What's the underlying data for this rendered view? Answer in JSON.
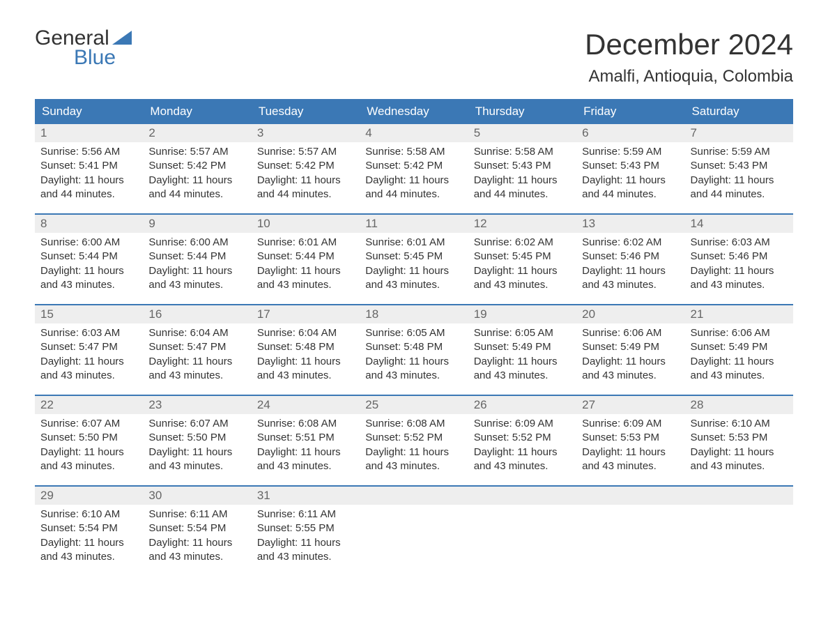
{
  "logo": {
    "word1": "General",
    "word2": "Blue",
    "triangle_color": "#3b78b5"
  },
  "title": "December 2024",
  "location": "Amalfi, Antioquia, Colombia",
  "colors": {
    "header_bg": "#3b78b5",
    "header_text": "#ffffff",
    "daynum_bg": "#eeeeee",
    "daynum_text": "#666666",
    "body_text": "#333333",
    "rule": "#3b78b5",
    "background": "#ffffff"
  },
  "fonts": {
    "title_size": 42,
    "location_size": 24,
    "header_size": 17,
    "body_size": 15
  },
  "day_labels": [
    "Sunday",
    "Monday",
    "Tuesday",
    "Wednesday",
    "Thursday",
    "Friday",
    "Saturday"
  ],
  "weeks": [
    [
      {
        "n": "1",
        "sunrise": "Sunrise: 5:56 AM",
        "sunset": "Sunset: 5:41 PM",
        "dl1": "Daylight: 11 hours",
        "dl2": "and 44 minutes."
      },
      {
        "n": "2",
        "sunrise": "Sunrise: 5:57 AM",
        "sunset": "Sunset: 5:42 PM",
        "dl1": "Daylight: 11 hours",
        "dl2": "and 44 minutes."
      },
      {
        "n": "3",
        "sunrise": "Sunrise: 5:57 AM",
        "sunset": "Sunset: 5:42 PM",
        "dl1": "Daylight: 11 hours",
        "dl2": "and 44 minutes."
      },
      {
        "n": "4",
        "sunrise": "Sunrise: 5:58 AM",
        "sunset": "Sunset: 5:42 PM",
        "dl1": "Daylight: 11 hours",
        "dl2": "and 44 minutes."
      },
      {
        "n": "5",
        "sunrise": "Sunrise: 5:58 AM",
        "sunset": "Sunset: 5:43 PM",
        "dl1": "Daylight: 11 hours",
        "dl2": "and 44 minutes."
      },
      {
        "n": "6",
        "sunrise": "Sunrise: 5:59 AM",
        "sunset": "Sunset: 5:43 PM",
        "dl1": "Daylight: 11 hours",
        "dl2": "and 44 minutes."
      },
      {
        "n": "7",
        "sunrise": "Sunrise: 5:59 AM",
        "sunset": "Sunset: 5:43 PM",
        "dl1": "Daylight: 11 hours",
        "dl2": "and 44 minutes."
      }
    ],
    [
      {
        "n": "8",
        "sunrise": "Sunrise: 6:00 AM",
        "sunset": "Sunset: 5:44 PM",
        "dl1": "Daylight: 11 hours",
        "dl2": "and 43 minutes."
      },
      {
        "n": "9",
        "sunrise": "Sunrise: 6:00 AM",
        "sunset": "Sunset: 5:44 PM",
        "dl1": "Daylight: 11 hours",
        "dl2": "and 43 minutes."
      },
      {
        "n": "10",
        "sunrise": "Sunrise: 6:01 AM",
        "sunset": "Sunset: 5:44 PM",
        "dl1": "Daylight: 11 hours",
        "dl2": "and 43 minutes."
      },
      {
        "n": "11",
        "sunrise": "Sunrise: 6:01 AM",
        "sunset": "Sunset: 5:45 PM",
        "dl1": "Daylight: 11 hours",
        "dl2": "and 43 minutes."
      },
      {
        "n": "12",
        "sunrise": "Sunrise: 6:02 AM",
        "sunset": "Sunset: 5:45 PM",
        "dl1": "Daylight: 11 hours",
        "dl2": "and 43 minutes."
      },
      {
        "n": "13",
        "sunrise": "Sunrise: 6:02 AM",
        "sunset": "Sunset: 5:46 PM",
        "dl1": "Daylight: 11 hours",
        "dl2": "and 43 minutes."
      },
      {
        "n": "14",
        "sunrise": "Sunrise: 6:03 AM",
        "sunset": "Sunset: 5:46 PM",
        "dl1": "Daylight: 11 hours",
        "dl2": "and 43 minutes."
      }
    ],
    [
      {
        "n": "15",
        "sunrise": "Sunrise: 6:03 AM",
        "sunset": "Sunset: 5:47 PM",
        "dl1": "Daylight: 11 hours",
        "dl2": "and 43 minutes."
      },
      {
        "n": "16",
        "sunrise": "Sunrise: 6:04 AM",
        "sunset": "Sunset: 5:47 PM",
        "dl1": "Daylight: 11 hours",
        "dl2": "and 43 minutes."
      },
      {
        "n": "17",
        "sunrise": "Sunrise: 6:04 AM",
        "sunset": "Sunset: 5:48 PM",
        "dl1": "Daylight: 11 hours",
        "dl2": "and 43 minutes."
      },
      {
        "n": "18",
        "sunrise": "Sunrise: 6:05 AM",
        "sunset": "Sunset: 5:48 PM",
        "dl1": "Daylight: 11 hours",
        "dl2": "and 43 minutes."
      },
      {
        "n": "19",
        "sunrise": "Sunrise: 6:05 AM",
        "sunset": "Sunset: 5:49 PM",
        "dl1": "Daylight: 11 hours",
        "dl2": "and 43 minutes."
      },
      {
        "n": "20",
        "sunrise": "Sunrise: 6:06 AM",
        "sunset": "Sunset: 5:49 PM",
        "dl1": "Daylight: 11 hours",
        "dl2": "and 43 minutes."
      },
      {
        "n": "21",
        "sunrise": "Sunrise: 6:06 AM",
        "sunset": "Sunset: 5:49 PM",
        "dl1": "Daylight: 11 hours",
        "dl2": "and 43 minutes."
      }
    ],
    [
      {
        "n": "22",
        "sunrise": "Sunrise: 6:07 AM",
        "sunset": "Sunset: 5:50 PM",
        "dl1": "Daylight: 11 hours",
        "dl2": "and 43 minutes."
      },
      {
        "n": "23",
        "sunrise": "Sunrise: 6:07 AM",
        "sunset": "Sunset: 5:50 PM",
        "dl1": "Daylight: 11 hours",
        "dl2": "and 43 minutes."
      },
      {
        "n": "24",
        "sunrise": "Sunrise: 6:08 AM",
        "sunset": "Sunset: 5:51 PM",
        "dl1": "Daylight: 11 hours",
        "dl2": "and 43 minutes."
      },
      {
        "n": "25",
        "sunrise": "Sunrise: 6:08 AM",
        "sunset": "Sunset: 5:52 PM",
        "dl1": "Daylight: 11 hours",
        "dl2": "and 43 minutes."
      },
      {
        "n": "26",
        "sunrise": "Sunrise: 6:09 AM",
        "sunset": "Sunset: 5:52 PM",
        "dl1": "Daylight: 11 hours",
        "dl2": "and 43 minutes."
      },
      {
        "n": "27",
        "sunrise": "Sunrise: 6:09 AM",
        "sunset": "Sunset: 5:53 PM",
        "dl1": "Daylight: 11 hours",
        "dl2": "and 43 minutes."
      },
      {
        "n": "28",
        "sunrise": "Sunrise: 6:10 AM",
        "sunset": "Sunset: 5:53 PM",
        "dl1": "Daylight: 11 hours",
        "dl2": "and 43 minutes."
      }
    ],
    [
      {
        "n": "29",
        "sunrise": "Sunrise: 6:10 AM",
        "sunset": "Sunset: 5:54 PM",
        "dl1": "Daylight: 11 hours",
        "dl2": "and 43 minutes."
      },
      {
        "n": "30",
        "sunrise": "Sunrise: 6:11 AM",
        "sunset": "Sunset: 5:54 PM",
        "dl1": "Daylight: 11 hours",
        "dl2": "and 43 minutes."
      },
      {
        "n": "31",
        "sunrise": "Sunrise: 6:11 AM",
        "sunset": "Sunset: 5:55 PM",
        "dl1": "Daylight: 11 hours",
        "dl2": "and 43 minutes."
      },
      {
        "empty": true
      },
      {
        "empty": true
      },
      {
        "empty": true
      },
      {
        "empty": true
      }
    ]
  ]
}
